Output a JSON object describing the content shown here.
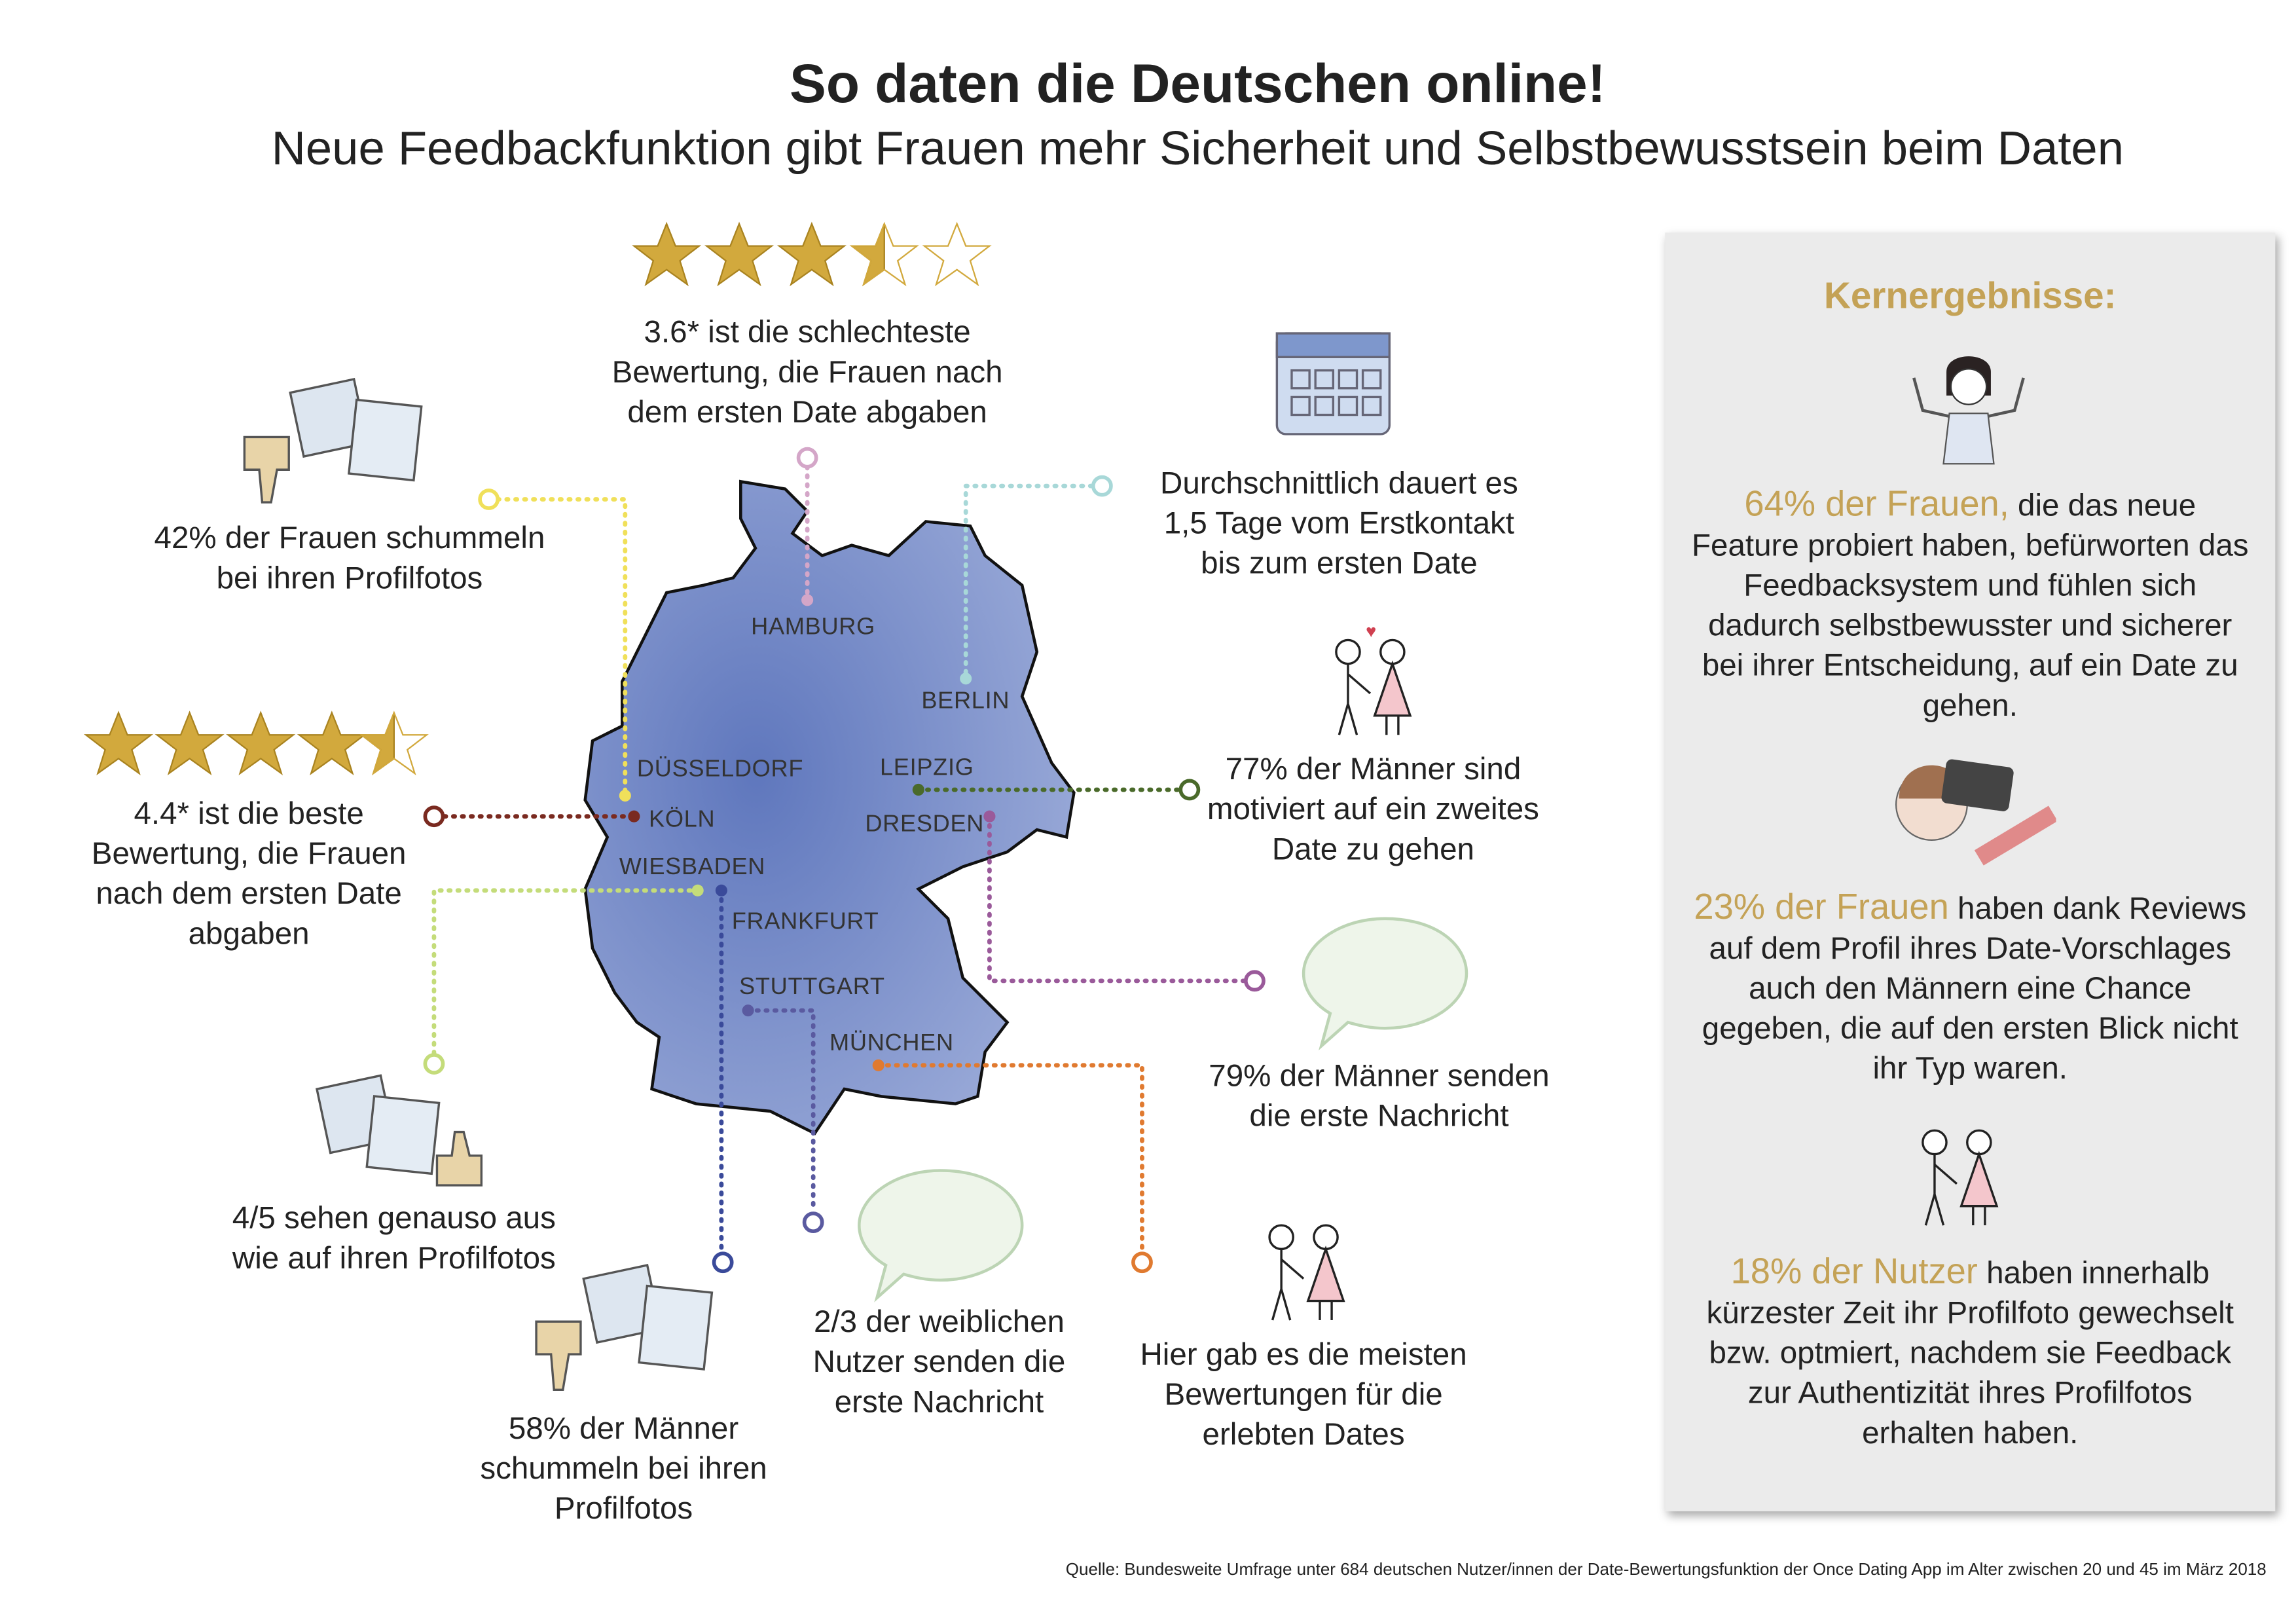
{
  "header": {
    "title": "So daten die Deutschen online!",
    "subtitle": "Neue Feedbackfunktion gibt Frauen mehr Sicherheit und Selbstbewusstsein beim Daten"
  },
  "map": {
    "cities": [
      "HAMBURG",
      "BERLIN",
      "DÜSSELDORF",
      "LEIPZIG",
      "KÖLN",
      "DRESDEN",
      "WIESBADEN",
      "FRANKFURT",
      "STUTTGART",
      "MÜNCHEN"
    ],
    "fill_color": "#6f86c4"
  },
  "facts": {
    "worst_rating": {
      "text": "3.6* ist die schlechteste Bewertung, die Frauen nach dem ersten Date abgaben",
      "stars": 3.6,
      "line_color": "#d4a6c8"
    },
    "women_cheat": {
      "text": "42% der Frauen schummeln bei ihren Profilfotos",
      "line_color": "#f0e05a"
    },
    "days": {
      "text": "Durchschnittlich dauert es 1,5 Tage vom Erstkontakt bis zum ersten Date",
      "line_color": "#a8d8d8"
    },
    "best_rating": {
      "text": "4.4* ist die beste Bewertung, die Frauen nach dem ersten Date abgaben",
      "stars": 4.4,
      "line_color": "#7a2a20"
    },
    "second_date": {
      "text": "77% der Männer sind motiviert auf ein zweites Date zu gehen",
      "line_color": "#4a6a2a"
    },
    "first_message_men": {
      "text": "79% der Männer senden die erste Nachricht",
      "line_color": "#9a5a9a"
    },
    "look_same": {
      "text": "4/5 sehen genauso aus wie auf ihren Profilfotos",
      "line_color": "#c4dc7a"
    },
    "men_cheat": {
      "text": "58% der Männer schummeln bei ihren Profilfotos",
      "line_color": "#3a4a9a"
    },
    "first_message_women": {
      "text": "2/3 der weiblichen Nutzer senden die erste Nachricht",
      "line_color": "#5a5aa0"
    },
    "most_reviews": {
      "text": "Hier gab es die meisten Bewertungen für die erlebten Dates",
      "line_color": "#e07a30"
    }
  },
  "panel": {
    "title": "Kernergebnisse:",
    "items": [
      {
        "highlight": "64% der Frauen,",
        "text": " die das neue Feature probiert haben, befürworten das Feedbacksystem und fühlen sich dadurch selbstbewusster und sicherer bei ihrer Entscheidung, auf ein Date zu gehen."
      },
      {
        "highlight": "23% der Frauen",
        "text": " haben dank Reviews auf dem Profil ihres Date-Vorschlages auch den Männern eine Chance gegeben, die auf den ersten Blick nicht ihr Typ waren."
      },
      {
        "highlight": "18% der Nutzer",
        "text": " haben innerhalb kürzester Zeit ihr Profilfoto gewechselt bzw. optmiert, nachdem sie Feedback zur Authentizität ihres Profilfotos erhalten haben."
      }
    ],
    "accent_color": "#c4a256"
  },
  "source": "Quelle: Bundesweite Umfrage unter 684 deutschen Nutzer/innen der Date-Bewertungsfunktion der Once Dating App im Alter zwischen 20 und 45 im März 2018"
}
